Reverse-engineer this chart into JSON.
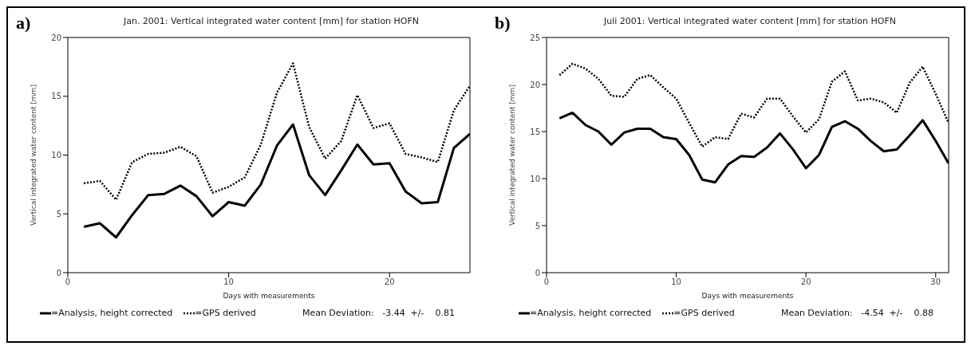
{
  "chart_data": [
    {
      "type": "line",
      "title": "Jan. 2001: Vertical integrated water content [mm] for station HOFN",
      "xlabel": "Days with measurements",
      "ylabel": "Vertical integrated water content [mm]",
      "x": [
        1,
        2,
        3,
        4,
        5,
        6,
        7,
        8,
        9,
        10,
        11,
        12,
        13,
        14,
        15,
        16,
        17,
        18,
        19,
        20,
        21,
        22,
        23,
        24,
        25
      ],
      "xlim": [
        0,
        25
      ],
      "xticks": [
        0,
        10,
        20
      ],
      "ylim": [
        0,
        20
      ],
      "yticks": [
        0,
        5,
        10,
        15,
        20
      ],
      "legend": "bottom",
      "marker": "none",
      "series": [
        {
          "name": "=Analysis, height corrected",
          "color": "#000000",
          "line_style": "solid",
          "values": [
            3.9,
            4.2,
            3.0,
            4.9,
            6.6,
            6.7,
            7.4,
            6.5,
            4.8,
            6.0,
            5.7,
            7.5,
            10.8,
            12.6,
            8.3,
            6.6,
            8.7,
            10.9,
            9.2,
            9.3,
            6.9,
            5.9,
            6.0,
            10.6,
            11.8
          ]
        },
        {
          "name": "=GPS derived",
          "color": "#000000",
          "line_style": "dotted",
          "values": [
            7.6,
            7.8,
            6.2,
            9.4,
            10.1,
            10.2,
            10.7,
            9.9,
            6.8,
            7.3,
            8.1,
            10.9,
            15.3,
            17.8,
            12.4,
            9.7,
            11.2,
            15.1,
            12.3,
            12.7,
            10.1,
            9.8,
            9.4,
            13.8,
            15.9
          ]
        }
      ],
      "annotations": [
        "a)",
        "Mean Deviation:   -3.44  +/-    0.81"
      ]
    },
    {
      "type": "line",
      "title": "Juli 2001: Vertical integrated water content [mm] for station HOFN",
      "xlabel": "Days with measurements",
      "ylabel": "Vertical integrated water content [mm]",
      "x": [
        1,
        2,
        3,
        4,
        5,
        6,
        7,
        8,
        9,
        10,
        11,
        12,
        13,
        14,
        15,
        16,
        17,
        18,
        19,
        20,
        21,
        22,
        23,
        24,
        25,
        26,
        27,
        28,
        29,
        30,
        31
      ],
      "xlim": [
        0,
        31
      ],
      "xticks": [
        0,
        10,
        20,
        30
      ],
      "ylim": [
        0,
        25
      ],
      "yticks": [
        0,
        5,
        10,
        15,
        20,
        25
      ],
      "legend": "bottom",
      "marker": "none",
      "series": [
        {
          "name": "=Analysis, height corrected",
          "color": "#000000",
          "line_style": "solid",
          "values": [
            16.4,
            17.0,
            15.7,
            15.0,
            13.6,
            14.9,
            15.3,
            15.3,
            14.4,
            14.2,
            12.5,
            9.9,
            9.6,
            11.5,
            12.4,
            12.3,
            13.3,
            14.8,
            13.1,
            11.1,
            12.5,
            15.5,
            16.1,
            15.3,
            14.0,
            12.9,
            13.1,
            14.6,
            16.2,
            14.0,
            11.6
          ]
        },
        {
          "name": "=GPS derived",
          "color": "#000000",
          "line_style": "dotted",
          "values": [
            21.0,
            22.2,
            21.7,
            20.6,
            18.8,
            18.7,
            20.6,
            21.0,
            19.7,
            18.5,
            15.9,
            13.4,
            14.4,
            14.2,
            16.9,
            16.5,
            18.5,
            18.5,
            16.6,
            14.9,
            16.3,
            20.3,
            21.4,
            18.3,
            18.5,
            18.1,
            17.0,
            20.2,
            21.9,
            19.0,
            15.9
          ]
        }
      ],
      "annotations": [
        "b)",
        "Mean Deviation:   -4.54  +/-    0.88"
      ]
    }
  ]
}
